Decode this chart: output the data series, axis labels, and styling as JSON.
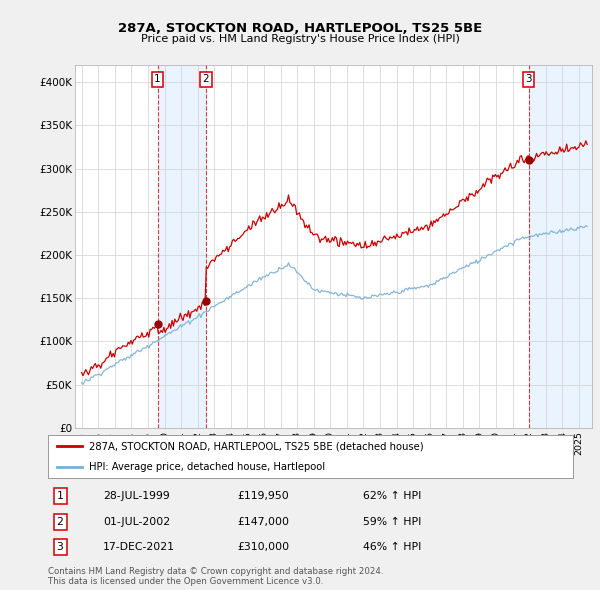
{
  "title": "287A, STOCKTON ROAD, HARTLEPOOL, TS25 5BE",
  "subtitle": "Price paid vs. HM Land Registry's House Price Index (HPI)",
  "ylim": [
    0,
    420000
  ],
  "yticks": [
    0,
    50000,
    100000,
    150000,
    200000,
    250000,
    300000,
    350000,
    400000
  ],
  "ytick_labels": [
    "£0",
    "£50K",
    "£100K",
    "£150K",
    "£200K",
    "£250K",
    "£300K",
    "£350K",
    "£400K"
  ],
  "xlim": [
    1994.6,
    2025.8
  ],
  "sales": [
    {
      "date_num": 1999.58,
      "price": 119950,
      "label": "1"
    },
    {
      "date_num": 2002.5,
      "price": 147000,
      "label": "2"
    },
    {
      "date_num": 2021.96,
      "price": 310000,
      "label": "3"
    }
  ],
  "sale_color": "#cc0000",
  "hpi_color": "#7aafd4",
  "shade_color": "#ddeeff",
  "shade_alpha": 0.6,
  "background_color": "#f0f0f0",
  "plot_bg": "#ffffff",
  "legend_entries": [
    "287A, STOCKTON ROAD, HARTLEPOOL, TS25 5BE (detached house)",
    "HPI: Average price, detached house, Hartlepool"
  ],
  "table_rows": [
    {
      "num": "1",
      "date": "28-JUL-1999",
      "price": "£119,950",
      "hpi": "62% ↑ HPI"
    },
    {
      "num": "2",
      "date": "01-JUL-2002",
      "price": "£147,000",
      "hpi": "59% ↑ HPI"
    },
    {
      "num": "3",
      "date": "17-DEC-2021",
      "price": "£310,000",
      "hpi": "46% ↑ HPI"
    }
  ],
  "footer": "Contains HM Land Registry data © Crown copyright and database right 2024.\nThis data is licensed under the Open Government Licence v3.0."
}
